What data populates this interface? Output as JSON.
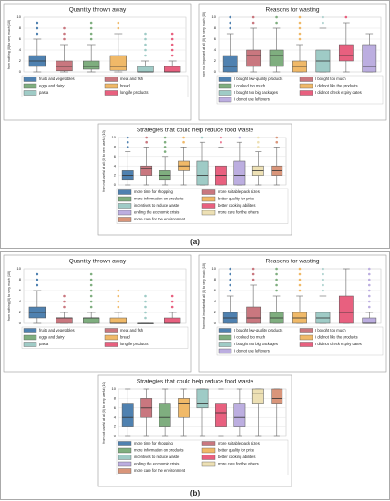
{
  "figure_labels": [
    "(a)",
    "(b)"
  ],
  "chart_data": [
    {
      "type": "box",
      "title": "Quantity thrown away",
      "y_label": "from nothing (0) to very much (10)",
      "ylim": [
        0,
        10
      ],
      "yticks": [
        0,
        2,
        4,
        6,
        8,
        10
      ],
      "grid": true,
      "series": [
        {
          "name": "fruits and vegetables",
          "color": "#4f81b0",
          "min": 0,
          "q1": 1,
          "median": 2,
          "q3": 3,
          "max": 6,
          "outliers": [
            7,
            8,
            9
          ]
        },
        {
          "name": "meat and fish",
          "color": "#c9777f",
          "min": 0,
          "q1": 0.2,
          "median": 1,
          "q3": 2,
          "max": 5,
          "outliers": [
            6,
            7,
            8
          ]
        },
        {
          "name": "eggs and dairy",
          "color": "#7fae7f",
          "min": 0,
          "q1": 0.5,
          "median": 1,
          "q3": 2,
          "max": 5,
          "outliers": [
            6,
            7,
            8,
            9
          ]
        },
        {
          "name": "bread",
          "color": "#f0b968",
          "min": 0,
          "q1": 0.3,
          "median": 1,
          "q3": 3,
          "max": 7,
          "outliers": [
            8,
            9
          ]
        },
        {
          "name": "pasta",
          "color": "#9fcbc6",
          "min": 0,
          "q1": 0,
          "median": 0,
          "q3": 1,
          "max": 2,
          "outliers": [
            3,
            4,
            5,
            6,
            7
          ]
        },
        {
          "name": "longlife products",
          "color": "#e8607f",
          "min": 0,
          "q1": 0,
          "median": 0,
          "q3": 1,
          "max": 2,
          "outliers": [
            3,
            4,
            5,
            6,
            7
          ]
        }
      ]
    },
    {
      "type": "box",
      "title": "Reasons for wasting",
      "y_label": "from not important at all (0) to very much (10)",
      "ylim": [
        0,
        10
      ],
      "yticks": [
        0,
        2,
        4,
        6,
        8,
        10
      ],
      "grid": true,
      "series": [
        {
          "name": "I bought low-quality products",
          "color": "#4f81b0",
          "min": 0,
          "q1": 0,
          "median": 1,
          "q3": 3,
          "max": 7,
          "outliers": [
            8,
            9,
            10
          ]
        },
        {
          "name": "I bought too much",
          "color": "#c9777f",
          "min": 0,
          "q1": 1,
          "median": 3,
          "q3": 4,
          "max": 8,
          "outliers": [
            9,
            10
          ]
        },
        {
          "name": "I cooked too much",
          "color": "#7fae7f",
          "min": 0,
          "q1": 1,
          "median": 3,
          "q3": 4,
          "max": 8,
          "outliers": [
            9,
            10
          ]
        },
        {
          "name": "I did not like the products",
          "color": "#f0b968",
          "min": 0,
          "q1": 0,
          "median": 1,
          "q3": 2,
          "max": 5,
          "outliers": [
            6,
            7,
            8,
            9,
            10
          ]
        },
        {
          "name": "I bought too big packages",
          "color": "#9fcbc6",
          "min": 0,
          "q1": 0,
          "median": 2,
          "q3": 4,
          "max": 8,
          "outliers": [
            9,
            10
          ]
        },
        {
          "name": "I did not check expiry dates",
          "color": "#e8607f",
          "min": 0,
          "q1": 2,
          "median": 3,
          "q3": 5,
          "max": 9,
          "outliers": [
            10
          ]
        },
        {
          "name": "I do not use leftovers",
          "color": "#bcaee0",
          "min": 0,
          "q1": 0,
          "median": 1,
          "q3": 5,
          "max": 7,
          "outliers": []
        }
      ]
    },
    {
      "type": "box",
      "title": "Strategies that could help reduce food waste",
      "y_label": "from not useful at all (0) to very useful (10)",
      "ylim": [
        0,
        10
      ],
      "yticks": [
        0,
        2,
        4,
        6,
        8,
        10
      ],
      "grid": true,
      "series": [
        {
          "name": "more time for shopping",
          "color": "#4f81b0",
          "min": 0,
          "q1": 1,
          "median": 2,
          "q3": 3,
          "max": 7,
          "outliers": [
            8,
            9,
            10
          ]
        },
        {
          "name": "more suitable pack sizes",
          "color": "#c9777f",
          "min": 0,
          "q1": 2,
          "median": 3.5,
          "q3": 4,
          "max": 8,
          "outliers": [
            9,
            10
          ]
        },
        {
          "name": "more information on products",
          "color": "#7fae7f",
          "min": 0,
          "q1": 1,
          "median": 2,
          "q3": 3,
          "max": 6,
          "outliers": [
            7,
            8,
            9,
            10
          ]
        },
        {
          "name": "better quality for price",
          "color": "#f0b968",
          "min": 0,
          "q1": 3,
          "median": 4,
          "q3": 5,
          "max": 8,
          "outliers": [
            9,
            10
          ]
        },
        {
          "name": "incentives to reduce waste",
          "color": "#9fcbc6",
          "min": 0,
          "q1": 0,
          "median": 2,
          "q3": 5,
          "max": 9,
          "outliers": [
            10
          ]
        },
        {
          "name": "better cooking abilities",
          "color": "#e8607f",
          "min": 0,
          "q1": 0,
          "median": 2,
          "q3": 4,
          "max": 8,
          "outliers": [
            9,
            10
          ]
        },
        {
          "name": "ending the economic crisis",
          "color": "#bcaee0",
          "min": 0,
          "q1": 0,
          "median": 2,
          "q3": 5,
          "max": 9,
          "outliers": [
            10
          ]
        },
        {
          "name": "more care for the others",
          "color": "#ede0b4",
          "min": 0,
          "q1": 2,
          "median": 3,
          "q3": 4,
          "max": 7,
          "outliers": [
            8,
            9,
            10
          ]
        },
        {
          "name": "more care for the environment",
          "color": "#d9957a",
          "min": 0,
          "q1": 2,
          "median": 3,
          "q3": 4,
          "max": 8,
          "outliers": [
            9,
            10
          ]
        }
      ]
    },
    {
      "type": "box",
      "title": "Quantity thrown away",
      "y_label": "from nothing (0) to very much (10)",
      "ylim": [
        0,
        10
      ],
      "yticks": [
        0,
        2,
        4,
        6,
        8,
        10
      ],
      "grid": true,
      "series": [
        {
          "name": "fruits and vegetables",
          "color": "#4f81b0",
          "min": 0,
          "q1": 1,
          "median": 2,
          "q3": 3,
          "max": 6,
          "outliers": [
            7,
            8,
            9
          ]
        },
        {
          "name": "meat and fish",
          "color": "#c9777f",
          "min": 0,
          "q1": 0,
          "median": 1,
          "q3": 1,
          "max": 2,
          "outliers": [
            3,
            4,
            5
          ]
        },
        {
          "name": "eggs and dairy",
          "color": "#7fae7f",
          "min": 0,
          "q1": 0,
          "median": 1,
          "q3": 1,
          "max": 2,
          "outliers": [
            3,
            4,
            5,
            6,
            7,
            8,
            9
          ]
        },
        {
          "name": "bread",
          "color": "#f0b968",
          "min": 0,
          "q1": 0,
          "median": 0,
          "q3": 1,
          "max": 2,
          "outliers": [
            3,
            4,
            5,
            6
          ]
        },
        {
          "name": "pasta",
          "color": "#9fcbc6",
          "min": 0,
          "q1": 0,
          "median": 0,
          "q3": 0,
          "max": 0,
          "outliers": [
            1,
            2,
            3,
            4,
            5
          ]
        },
        {
          "name": "longlife products",
          "color": "#e8607f",
          "min": 0,
          "q1": 0,
          "median": 0,
          "q3": 1,
          "max": 2,
          "outliers": [
            3,
            4,
            5
          ]
        }
      ]
    },
    {
      "type": "box",
      "title": "Reasons for wasting",
      "y_label": "from not important at all (0) to very much (10)",
      "ylim": [
        0,
        10
      ],
      "yticks": [
        0,
        2,
        4,
        6,
        8,
        10
      ],
      "grid": true,
      "series": [
        {
          "name": "I bought low-quality products",
          "color": "#4f81b0",
          "min": 0,
          "q1": 0,
          "median": 1,
          "q3": 2,
          "max": 5,
          "outliers": [
            6,
            7,
            8,
            9,
            10
          ]
        },
        {
          "name": "I bought too much",
          "color": "#c9777f",
          "min": 0,
          "q1": 0,
          "median": 1,
          "q3": 3,
          "max": 7,
          "outliers": [
            8,
            9,
            10
          ]
        },
        {
          "name": "I cooked too much",
          "color": "#7fae7f",
          "min": 0,
          "q1": 0,
          "median": 1,
          "q3": 2,
          "max": 5,
          "outliers": [
            6,
            7,
            8,
            9,
            10
          ]
        },
        {
          "name": "I did not like the products",
          "color": "#f0b968",
          "min": 0,
          "q1": 0,
          "median": 1,
          "q3": 2,
          "max": 5,
          "outliers": [
            6,
            7,
            8,
            9,
            10
          ]
        },
        {
          "name": "I bought too big packages",
          "color": "#9fcbc6",
          "min": 0,
          "q1": 0,
          "median": 1,
          "q3": 2,
          "max": 5,
          "outliers": [
            6,
            7,
            8,
            9,
            10
          ]
        },
        {
          "name": "I did not check expiry dates",
          "color": "#e8607f",
          "min": 0,
          "q1": 0,
          "median": 2,
          "q3": 5,
          "max": 10,
          "outliers": []
        },
        {
          "name": "I do not use leftovers",
          "color": "#bcaee0",
          "min": 0,
          "q1": 0,
          "median": 0,
          "q3": 1,
          "max": 2,
          "outliers": [
            3,
            4,
            5,
            6,
            7,
            8,
            9,
            10
          ]
        }
      ]
    },
    {
      "type": "box",
      "title": "Strategies that could help reduce food waste",
      "y_label": "from not useful at all (0) to very useful (10)",
      "ylim": [
        0,
        10
      ],
      "yticks": [
        0,
        2,
        4,
        6,
        8,
        10
      ],
      "grid": true,
      "series": [
        {
          "name": "more time for shopping",
          "color": "#4f81b0",
          "min": 0,
          "q1": 2,
          "median": 4,
          "q3": 7,
          "max": 10,
          "outliers": []
        },
        {
          "name": "more suitable pack sizes",
          "color": "#c9777f",
          "min": 0,
          "q1": 4,
          "median": 6,
          "q3": 8,
          "max": 10,
          "outliers": []
        },
        {
          "name": "more information on products",
          "color": "#7fae7f",
          "min": 0,
          "q1": 2,
          "median": 4,
          "q3": 7,
          "max": 10,
          "outliers": []
        },
        {
          "name": "better quality for price",
          "color": "#f0b968",
          "min": 0,
          "q1": 4,
          "median": 7,
          "q3": 8,
          "max": 10,
          "outliers": []
        },
        {
          "name": "incentives to reduce waste",
          "color": "#9fcbc6",
          "min": 0,
          "q1": 6,
          "median": 7,
          "q3": 10,
          "max": 10,
          "outliers": []
        },
        {
          "name": "better cooking abilities",
          "color": "#e8607f",
          "min": 0,
          "q1": 2,
          "median": 5,
          "q3": 7,
          "max": 10,
          "outliers": []
        },
        {
          "name": "ending the economic crisis",
          "color": "#bcaee0",
          "min": 0,
          "q1": 2,
          "median": 4,
          "q3": 7,
          "max": 10,
          "outliers": []
        },
        {
          "name": "more care for the others",
          "color": "#ede0b4",
          "min": 0,
          "q1": 7,
          "median": 9,
          "q3": 10,
          "max": 10,
          "outliers": []
        },
        {
          "name": "more care for the environment",
          "color": "#d9957a",
          "min": 0,
          "q1": 7,
          "median": 8,
          "q3": 10,
          "max": 10,
          "outliers": []
        }
      ]
    }
  ]
}
